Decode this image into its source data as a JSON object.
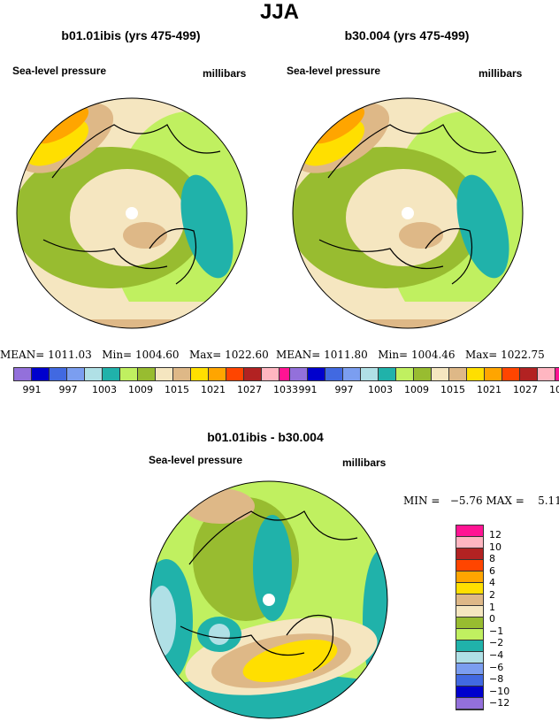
{
  "title": "JJA",
  "panels": [
    {
      "title": "b01.01ibis (yrs 475-499)",
      "variable": "Sea-level pressure",
      "units": "millibars",
      "stats": {
        "mean_label": "MEAN=",
        "mean": "1011.03",
        "min_label": "Min=",
        "min": "1004.60",
        "max_label": "Max=",
        "max": "1022.60"
      }
    },
    {
      "title": "b30.004 (yrs 475-499)",
      "variable": "Sea-level pressure",
      "units": "millibars",
      "stats": {
        "mean_label": "MEAN=",
        "mean": "1011.80",
        "min_label": "Min=",
        "min": "1004.46",
        "max_label": "Max=",
        "max": "1022.75"
      }
    },
    {
      "title": "b01.01ibis - b30.004",
      "variable": "Sea-level pressure",
      "units": "millibars",
      "stats": {
        "min_label": "MIN =",
        "min": "−5.76",
        "max_label": "MAX =",
        "max": "5.11"
      }
    }
  ],
  "chart_data": {
    "type": "heatmap",
    "projection": "north polar stereographic",
    "colors": [
      "#9370db",
      "#0000cd",
      "#4169e1",
      "#7b9ef0",
      "#b0e0e6",
      "#20b2aa",
      "#c0f060",
      "#98bc30",
      "#f5e6c0",
      "#deb887",
      "#ffdf00",
      "#ffa500",
      "#ff4500",
      "#b22222",
      "#ffb6c1",
      "#ff1493"
    ],
    "abs_levels": [
      991,
      994,
      997,
      1000,
      1003,
      1006,
      1009,
      1012,
      1015,
      1018,
      1021,
      1024,
      1027,
      1030,
      1033
    ],
    "abs_tick_labels": [
      "991",
      "997",
      "1003",
      "1009",
      "1015",
      "1021",
      "1027",
      "1033"
    ],
    "diff_levels": [
      -12,
      -10,
      -8,
      -6,
      -4,
      -2,
      -1,
      0,
      1,
      2,
      4,
      6,
      8,
      10,
      12
    ],
    "diff_tick_labels": [
      "12",
      "10",
      "8",
      "6",
      "4",
      "2",
      "1",
      "0",
      "−1",
      "−2",
      "−4",
      "−6",
      "−8",
      "−10",
      "−12"
    ]
  }
}
